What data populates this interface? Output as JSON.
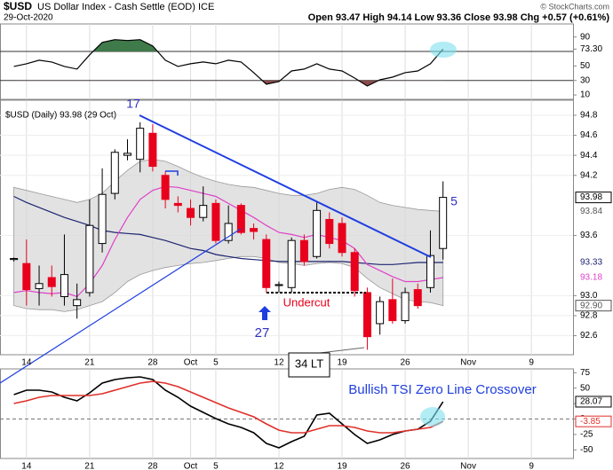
{
  "header": {
    "symbol": "$USD",
    "name": "US Dollar Index - Cash Settle (EOD) ICE",
    "date": "29-Oct-2020",
    "quote": "Open 93.47  High 94.14  Low 93.36  Close 93.98  Chg +0.57 (+0.61%)",
    "credit": "© StockCharts.com"
  },
  "chart_data": [
    {
      "type": "line",
      "x": [
        -1,
        0,
        1,
        2,
        3,
        4,
        5,
        6,
        7,
        8,
        9,
        10,
        11,
        12,
        13,
        14,
        15,
        16,
        17,
        18,
        19,
        20,
        21,
        22,
        23,
        24,
        25,
        26,
        27,
        28,
        29,
        30,
        31,
        32,
        33
      ],
      "series": [
        {
          "color": "#000000",
          "values": [
            49.4,
            53.1,
            58.0,
            55.5,
            49.4,
            45.7,
            65.4,
            82.6,
            86.3,
            85.1,
            86.3,
            77.7,
            58.0,
            49.4,
            53.1,
            55.5,
            53.1,
            58.0,
            55.5,
            40.8,
            24.8,
            28.5,
            43.2,
            45.7,
            53.1,
            45.7,
            43.2,
            33.4,
            22.3,
            30.9,
            34.6,
            40.8,
            43.2,
            53.1,
            73.3
          ]
        }
      ],
      "xlim": [
        -2.1,
        43.3
      ],
      "ylim": [
        4,
        108
      ],
      "yticks": [
        90,
        {
          "value": 73.3,
          "label": "73.30"
        },
        50,
        30,
        10
      ],
      "levels": [
        70,
        30
      ],
      "upper_fill": "#3f7a4a",
      "lower_fill": "#8a4b4b"
    },
    {
      "type": "candlestick",
      "title": "$USD (Daily) 93.98 (29 Oct)",
      "x": [
        -1,
        0,
        1,
        2,
        3,
        4,
        5,
        6,
        7,
        8,
        9,
        10,
        11,
        12,
        13,
        14,
        15,
        16,
        17,
        18,
        19,
        20,
        21,
        22,
        23,
        24,
        25,
        26,
        27,
        28,
        29,
        30,
        31,
        32,
        33
      ],
      "open": [
        93.36,
        93.32,
        93.07,
        93.18,
        92.99,
        92.9,
        93.03,
        93.52,
        94.02,
        94.4,
        94.36,
        94.62,
        94.2,
        93.92,
        93.87,
        93.78,
        93.92,
        93.55,
        93.9,
        93.67,
        93.56,
        93.1,
        93.08,
        93.55,
        93.39,
        93.76,
        93.72,
        93.43,
        93.03,
        92.72,
        92.96,
        92.75,
        93.06,
        93.08,
        93.47
      ],
      "high": [
        93.38,
        93.56,
        93.3,
        93.3,
        93.61,
        93.12,
        93.96,
        94.27,
        94.46,
        94.56,
        94.73,
        94.71,
        94.24,
        93.99,
        93.96,
        94.09,
        93.96,
        93.9,
        93.92,
        93.72,
        93.61,
        93.14,
        93.58,
        93.61,
        93.93,
        93.83,
        93.78,
        93.47,
        93.08,
        92.99,
        93.17,
        93.08,
        93.12,
        93.65,
        94.14
      ],
      "low": [
        93.34,
        92.9,
        92.9,
        92.99,
        92.9,
        92.77,
        92.99,
        93.43,
        93.96,
        94.35,
        94.23,
        94.24,
        93.87,
        93.83,
        93.7,
        93.74,
        93.52,
        93.52,
        93.61,
        93.56,
        93.03,
        93.03,
        93.03,
        93.3,
        93.37,
        93.47,
        93.39,
        92.99,
        92.46,
        92.61,
        92.72,
        92.72,
        92.87,
        93.03,
        93.36
      ],
      "close": [
        93.37,
        93.06,
        93.12,
        93.09,
        93.21,
        92.96,
        93.7,
        94.01,
        94.43,
        94.42,
        94.67,
        94.29,
        93.96,
        93.9,
        93.78,
        93.9,
        93.55,
        93.72,
        93.63,
        93.64,
        93.08,
        93.11,
        93.55,
        93.34,
        93.85,
        93.52,
        93.43,
        93.05,
        92.59,
        92.94,
        92.75,
        93.03,
        92.9,
        93.4,
        93.98
      ],
      "up_color": "#000000",
      "down_color": "#e8001c",
      "band": {
        "color": "#d6d6d6",
        "upper": [
          94.08,
          94.05,
          94.02,
          93.99,
          93.96,
          93.93,
          93.96,
          94.02,
          94.14,
          94.25,
          94.34,
          94.36,
          94.34,
          94.29,
          94.23,
          94.18,
          94.14,
          94.11,
          94.09,
          94.08,
          94.05,
          94.02,
          94.0,
          94.0,
          94.02,
          94.06,
          94.08,
          94.06,
          94.0,
          93.93,
          93.9,
          93.88,
          93.86,
          93.85,
          93.84
        ],
        "lower": [
          92.9,
          92.87,
          92.86,
          92.86,
          92.84,
          92.86,
          92.9,
          92.94,
          93.03,
          93.14,
          93.21,
          93.25,
          93.28,
          93.3,
          93.32,
          93.33,
          93.35,
          93.37,
          93.39,
          93.39,
          93.37,
          93.33,
          93.32,
          93.3,
          93.32,
          93.33,
          93.32,
          93.28,
          93.17,
          93.08,
          93.02,
          92.96,
          92.94,
          92.93,
          92.9
        ],
        "lower_label": "92.90"
      },
      "series": [
        {
          "color": "#1c2470",
          "values": [
            93.99,
            93.93,
            93.88,
            93.83,
            93.78,
            93.74,
            93.7,
            93.65,
            93.63,
            93.62,
            93.61,
            93.58,
            93.55,
            93.51,
            93.47,
            93.45,
            93.41,
            93.39,
            93.37,
            93.36,
            93.35,
            93.34,
            93.34,
            93.34,
            93.34,
            93.34,
            93.34,
            93.33,
            93.32,
            93.31,
            93.31,
            93.32,
            93.33,
            93.33,
            93.33
          ]
        },
        {
          "color": "#e040c8",
          "values": [
            93.03,
            93.05,
            93.03,
            93.02,
            93.03,
            92.99,
            93.12,
            93.3,
            93.56,
            93.78,
            93.96,
            94.05,
            94.09,
            94.08,
            94.05,
            94.02,
            93.99,
            93.92,
            93.85,
            93.78,
            93.7,
            93.63,
            93.61,
            93.58,
            93.61,
            93.58,
            93.55,
            93.47,
            93.31,
            93.25,
            93.19,
            93.14,
            93.14,
            93.16,
            93.18
          ]
        }
      ],
      "xlim": [
        -2.1,
        43.3
      ],
      "ylim": [
        92.41,
        94.95
      ],
      "xticks": [
        {
          "value": 0,
          "label": "14"
        },
        {
          "value": 5,
          "label": "21"
        },
        {
          "value": 10,
          "label": "28"
        },
        {
          "value": 13,
          "label": "Oct"
        },
        {
          "value": 15,
          "label": "5"
        },
        {
          "value": 20,
          "label": "12"
        },
        {
          "value": 25,
          "label": "19"
        },
        {
          "value": 30,
          "label": "26"
        },
        {
          "value": 35,
          "label": "Nov"
        },
        {
          "value": 40,
          "label": "9"
        }
      ],
      "yticks": [
        94.8,
        94.6,
        94.4,
        94.2,
        93.6,
        {
          "value": 93,
          "label": "93.0"
        },
        92.8,
        92.6
      ],
      "grid": true,
      "annotations": [
        "17",
        "5",
        "27",
        "34 LT",
        "Undercut"
      ]
    },
    {
      "type": "line",
      "x": [
        -1,
        0,
        1,
        2,
        3,
        4,
        5,
        6,
        7,
        8,
        9,
        10,
        11,
        12,
        13,
        14,
        15,
        16,
        17,
        18,
        19,
        20,
        21,
        22,
        23,
        24,
        25,
        26,
        27,
        28,
        29,
        30,
        31,
        32,
        33
      ],
      "series": [
        {
          "color": "#000000",
          "values": [
            39.5,
            46.7,
            46.7,
            43.8,
            35.2,
            29.5,
            42.4,
            58.2,
            63.9,
            66.8,
            68.2,
            63.9,
            46.7,
            35.2,
            20.8,
            10.8,
            0.7,
            -7.9,
            -13.6,
            -22.3,
            -39.5,
            -46.7,
            -36.6,
            -28.0,
            6.5,
            9.3,
            -7.9,
            -25.1,
            -39.5,
            -33.8,
            -25.1,
            -19.4,
            -16.5,
            -3.6,
            28.07
          ]
        },
        {
          "color": "#e0302a",
          "values": [
            25.1,
            29.5,
            35.2,
            38.1,
            38.1,
            38.1,
            38.1,
            41.0,
            46.7,
            52.4,
            58.2,
            61.0,
            58.2,
            52.4,
            43.8,
            35.2,
            26.6,
            18.0,
            10.8,
            3.6,
            -7.9,
            -18.0,
            -22.3,
            -22.3,
            -16.5,
            -10.8,
            -10.8,
            -13.6,
            -19.4,
            -22.3,
            -22.3,
            -19.4,
            -16.5,
            -13.6,
            -3.85
          ]
        }
      ],
      "xlim": [
        -2.1,
        43.3
      ],
      "ylim": [
        -63.9,
        81.2
      ],
      "xticks": [
        {
          "value": 0,
          "label": "14"
        },
        {
          "value": 5,
          "label": "21"
        },
        {
          "value": 10,
          "label": "28"
        },
        {
          "value": 13,
          "label": "Oct"
        },
        {
          "value": 15,
          "label": "5"
        },
        {
          "value": 20,
          "label": "12"
        },
        {
          "value": 25,
          "label": "19"
        },
        {
          "value": 30,
          "label": "26"
        },
        {
          "value": 35,
          "label": "Nov"
        },
        {
          "value": 40,
          "label": "9"
        }
      ],
      "yticks": [
        75,
        50,
        25,
        0,
        -25,
        -50
      ],
      "levels": [
        0
      ],
      "annotations": [
        "Bullish TSI Zero Line Crossover"
      ]
    }
  ]
}
